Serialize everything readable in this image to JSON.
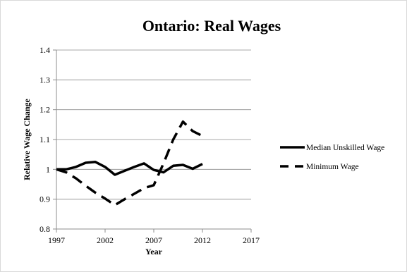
{
  "chart_data": {
    "type": "line",
    "title": "Ontario: Real Wages",
    "xlabel": "Year",
    "ylabel": "Relative Wage Change",
    "xlim": [
      1997,
      2017
    ],
    "ylim": [
      0.8,
      1.4
    ],
    "xticks": [
      1997,
      2002,
      2007,
      2012,
      2017
    ],
    "xtick_labels": [
      "1997",
      "2002",
      "2007",
      "2012",
      "2017"
    ],
    "yticks": [
      0.8,
      0.9,
      1.0,
      1.1,
      1.2,
      1.3,
      1.4
    ],
    "ytick_labels": [
      "0.8",
      "0.9",
      "1",
      "1.1",
      "1.2",
      "1.3",
      "1.4"
    ],
    "grid": "horizontal",
    "legend_position": "right",
    "series": [
      {
        "name": "Median Unskilled Wage",
        "style": "solid",
        "color": "#000000",
        "x": [
          1997,
          1998,
          1999,
          2000,
          2001,
          2002,
          2003,
          2004,
          2005,
          2006,
          2007,
          2008,
          2009,
          2010,
          2011,
          2012
        ],
        "y": [
          1.0,
          1.0,
          1.008,
          1.022,
          1.025,
          1.008,
          0.982,
          0.995,
          1.008,
          1.02,
          0.998,
          0.99,
          1.012,
          1.015,
          1.002,
          1.018
        ]
      },
      {
        "name": "Minimum Wage",
        "style": "dashed",
        "color": "#000000",
        "x": [
          1997,
          1998,
          1999,
          2000,
          2001,
          2002,
          2003,
          2004,
          2005,
          2006,
          2007,
          2008,
          2009,
          2010,
          2011,
          2012
        ],
        "y": [
          1.0,
          0.99,
          0.97,
          0.945,
          0.922,
          0.902,
          0.88,
          0.9,
          0.918,
          0.937,
          0.947,
          1.02,
          1.1,
          1.16,
          1.128,
          1.112
        ]
      }
    ]
  }
}
